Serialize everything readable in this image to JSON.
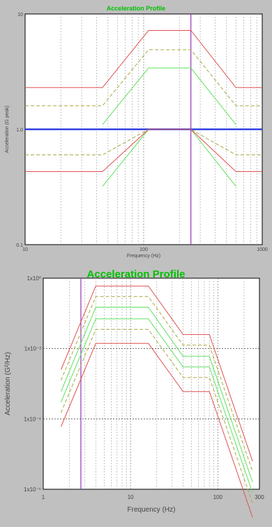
{
  "charts": [
    {
      "title": "Acceleration Profile",
      "chart_data": {
        "type": "line",
        "title": "Acceleration Profile",
        "xlabel": "Frequency (Hz)",
        "ylabel": "Acceleration (G peak)",
        "x_scale": "log",
        "y_scale": "log",
        "xlim": [
          10,
          1000
        ],
        "ylim": [
          0.1,
          10
        ],
        "x_ticks": [
          "10",
          "100",
          "1000"
        ],
        "y_ticks": [
          "0.1",
          "1.0",
          "10"
        ],
        "grid": true,
        "vertical_markers": [
          {
            "x": 250,
            "color": "#a050c0"
          }
        ],
        "series": [
          {
            "color": "#e05050",
            "style": "solid",
            "width": 1,
            "points": [
              [
                10,
                2.3
              ],
              [
                45,
                2.3
              ],
              [
                110,
                7.2
              ],
              [
                250,
                7.2
              ],
              [
                600,
                2.3
              ],
              [
                1000,
                2.3
              ]
            ]
          },
          {
            "color": "#a8a840",
            "style": "dashed",
            "width": 1,
            "points": [
              [
                10,
                1.6
              ],
              [
                45,
                1.6
              ],
              [
                110,
                4.9
              ],
              [
                250,
                4.9
              ],
              [
                600,
                1.6
              ],
              [
                1000,
                1.6
              ]
            ]
          },
          {
            "color": "#60e060",
            "style": "solid",
            "width": 1,
            "points": [
              [
                45,
                1.1
              ],
              [
                110,
                3.4
              ],
              [
                250,
                3.4
              ],
              [
                600,
                1.1
              ]
            ]
          },
          {
            "color": "#3040e0",
            "style": "solid",
            "width": 2.5,
            "points": [
              [
                10,
                1.0
              ],
              [
                1000,
                1.0
              ]
            ]
          },
          {
            "color": "#60e060",
            "style": "solid",
            "width": 1,
            "points": [
              [
                45,
                0.32
              ],
              [
                110,
                1.0
              ],
              [
                250,
                1.0
              ],
              [
                600,
                0.32
              ]
            ]
          },
          {
            "color": "#a8a840",
            "style": "dashed",
            "width": 1,
            "points": [
              [
                10,
                0.6
              ],
              [
                45,
                0.6
              ],
              [
                110,
                1.0
              ],
              [
                250,
                1.0
              ],
              [
                600,
                0.6
              ],
              [
                1000,
                0.6
              ]
            ]
          },
          {
            "color": "#e05050",
            "style": "solid",
            "width": 1,
            "points": [
              [
                10,
                0.43
              ],
              [
                45,
                0.43
              ],
              [
                110,
                1.0
              ],
              [
                250,
                1.0
              ],
              [
                600,
                0.43
              ],
              [
                1000,
                0.43
              ]
            ]
          }
        ]
      }
    },
    {
      "title": "Acceleration Profile",
      "chart_data": {
        "type": "line",
        "title": "Acceleration Profile",
        "xlabel": "Frequency (Hz)",
        "ylabel": "Acceleration (G²/Hz)",
        "x_scale": "log",
        "y_scale": "log",
        "xlim": [
          1,
          300
        ],
        "ylim": [
          1e-06,
          1
        ],
        "x_ticks": [
          "1",
          "10",
          "100",
          "300"
        ],
        "y_ticks": [
          "1x10⁰",
          "1x10⁻²",
          "1x10⁻⁴",
          "1x10⁻⁶"
        ],
        "grid": true,
        "vertical_markers": [
          {
            "x": 2.7,
            "color": "#a050c0"
          }
        ],
        "series": [
          {
            "color": "#e05050",
            "style": "solid",
            "width": 1,
            "points": [
              [
                1.6,
                0.0025
              ],
              [
                4,
                0.6
              ],
              [
                16,
                0.6
              ],
              [
                40,
                0.025
              ],
              [
                80,
                0.025
              ],
              [
                250,
                6.3e-06
              ]
            ]
          },
          {
            "color": "#a8a840",
            "style": "dashed",
            "width": 1,
            "points": [
              [
                1.6,
                0.00125
              ],
              [
                4,
                0.3
              ],
              [
                16,
                0.3
              ],
              [
                40,
                0.0125
              ],
              [
                80,
                0.0125
              ],
              [
                250,
                3.2e-06
              ]
            ]
          },
          {
            "color": "#60e060",
            "style": "solid",
            "width": 1,
            "points": [
              [
                1.6,
                0.0006
              ],
              [
                4,
                0.15
              ],
              [
                16,
                0.15
              ],
              [
                40,
                0.006
              ],
              [
                80,
                0.006
              ],
              [
                250,
                1.6e-06
              ]
            ]
          },
          {
            "color": "#60e060",
            "style": "solid",
            "width": 1,
            "points": [
              [
                1.6,
                0.0003
              ],
              [
                4,
                0.07
              ],
              [
                16,
                0.07
              ],
              [
                40,
                0.003
              ],
              [
                80,
                0.003
              ],
              [
                250,
                8e-07
              ]
            ]
          },
          {
            "color": "#a8a840",
            "style": "dashed",
            "width": 1,
            "points": [
              [
                1.6,
                0.00015
              ],
              [
                4,
                0.035
              ],
              [
                16,
                0.035
              ],
              [
                40,
                0.0015
              ],
              [
                80,
                0.0015
              ],
              [
                250,
                4e-07
              ]
            ]
          },
          {
            "color": "#e05050",
            "style": "solid",
            "width": 1,
            "points": [
              [
                1.6,
                6e-05
              ],
              [
                4,
                0.014
              ],
              [
                16,
                0.014
              ],
              [
                40,
                0.0006
              ],
              [
                80,
                0.0006
              ],
              [
                250,
                1.6e-07
              ]
            ]
          }
        ]
      }
    }
  ]
}
